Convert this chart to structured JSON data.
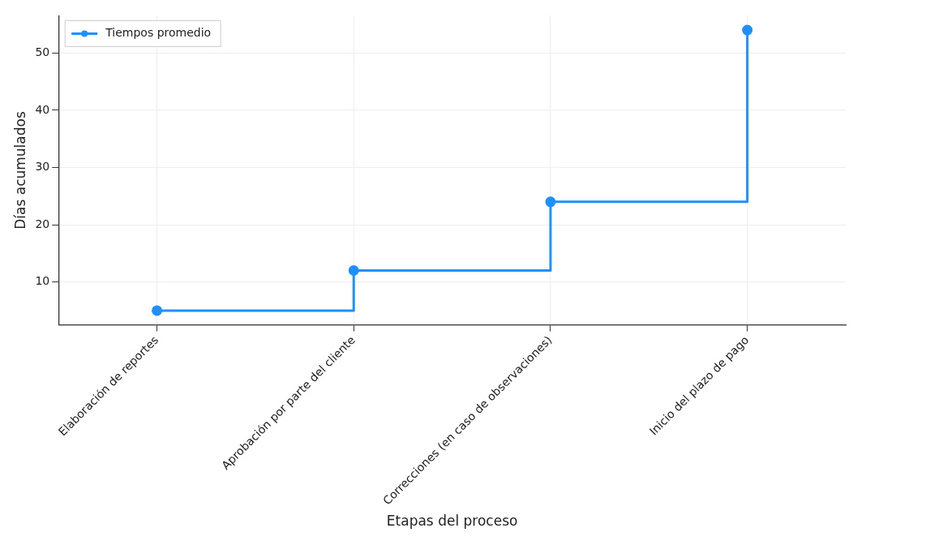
{
  "chart_data": {
    "type": "step",
    "xlabel": "Etapas del proceso",
    "ylabel": "Días acumulados",
    "categories": [
      "Elaboración de reportes",
      "Aprobación por parte del cliente",
      "Correcciones (en caso de observaciones)",
      "Inicio del plazo de pago"
    ],
    "series": [
      {
        "name": "Tiempos promedio",
        "color": "#1e90ff",
        "values": [
          5,
          12,
          24,
          54
        ]
      }
    ],
    "ylim": [
      2.5,
      56.5
    ],
    "yticks": [
      10,
      20,
      30,
      40,
      50
    ],
    "grid": true,
    "legend": "top left",
    "marker": "circle",
    "line_style": "solid"
  }
}
